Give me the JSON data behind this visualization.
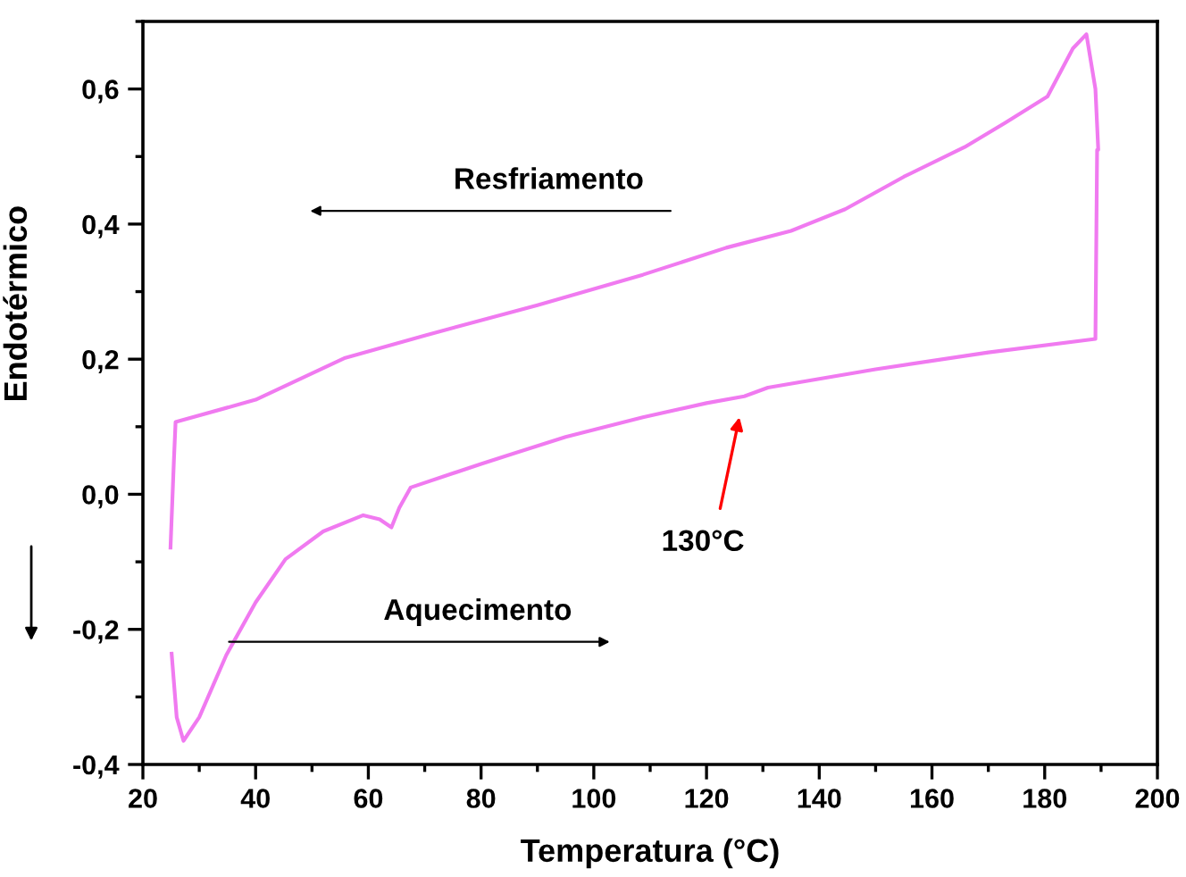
{
  "chart_data": {
    "type": "line",
    "xlabel": "Temperatura (°C)",
    "ylabel": "Endotérmico",
    "xlim": [
      20,
      200
    ],
    "ylim": [
      -0.4,
      0.7
    ],
    "xticks": [
      20,
      40,
      60,
      80,
      100,
      120,
      140,
      160,
      180,
      200
    ],
    "yticks": [
      {
        "value": -0.4,
        "label": "-0,4"
      },
      {
        "value": -0.2,
        "label": "-0,2"
      },
      {
        "value": 0,
        "label": "0,0"
      },
      {
        "value": 0.2,
        "label": "0,2"
      },
      {
        "value": 0.4,
        "label": "0,4"
      },
      {
        "value": 0.6,
        "label": "0,6"
      }
    ],
    "grid": false,
    "legend": false,
    "marker": "none",
    "line_style": "solid",
    "series": [
      {
        "color": "#f07af0",
        "x": [
          25.1,
          26.0,
          27.2,
          30,
          34.8,
          40,
          45.3,
          52,
          59.1,
          62,
          64.1,
          65.5,
          67.5,
          80,
          95,
          108.7,
          120,
          126.7,
          130.9,
          150,
          170,
          189.0,
          189.3,
          189.5,
          189.0,
          187.4,
          185,
          180.5,
          173,
          165.8,
          155,
          144.6,
          135,
          123.5,
          108.7,
          90,
          70,
          55.9,
          40,
          25.8,
          25.5,
          24.9
        ],
        "values": [
          -0.236,
          -0.33,
          -0.365,
          -0.33,
          -0.238,
          -0.16,
          -0.096,
          -0.055,
          -0.031,
          -0.037,
          -0.049,
          -0.02,
          0.01,
          0.045,
          0.085,
          0.114,
          0.135,
          0.145,
          0.158,
          0.185,
          0.21,
          0.23,
          0.51,
          0.51,
          0.6,
          0.681,
          0.66,
          0.589,
          0.55,
          0.514,
          0.47,
          0.422,
          0.39,
          0.365,
          0.325,
          0.28,
          0.235,
          0.202,
          0.14,
          0.107,
          0.05,
          -0.079
        ]
      }
    ],
    "annotations": [
      "Resfriamento",
      "Aquecimento",
      "130°C"
    ]
  }
}
